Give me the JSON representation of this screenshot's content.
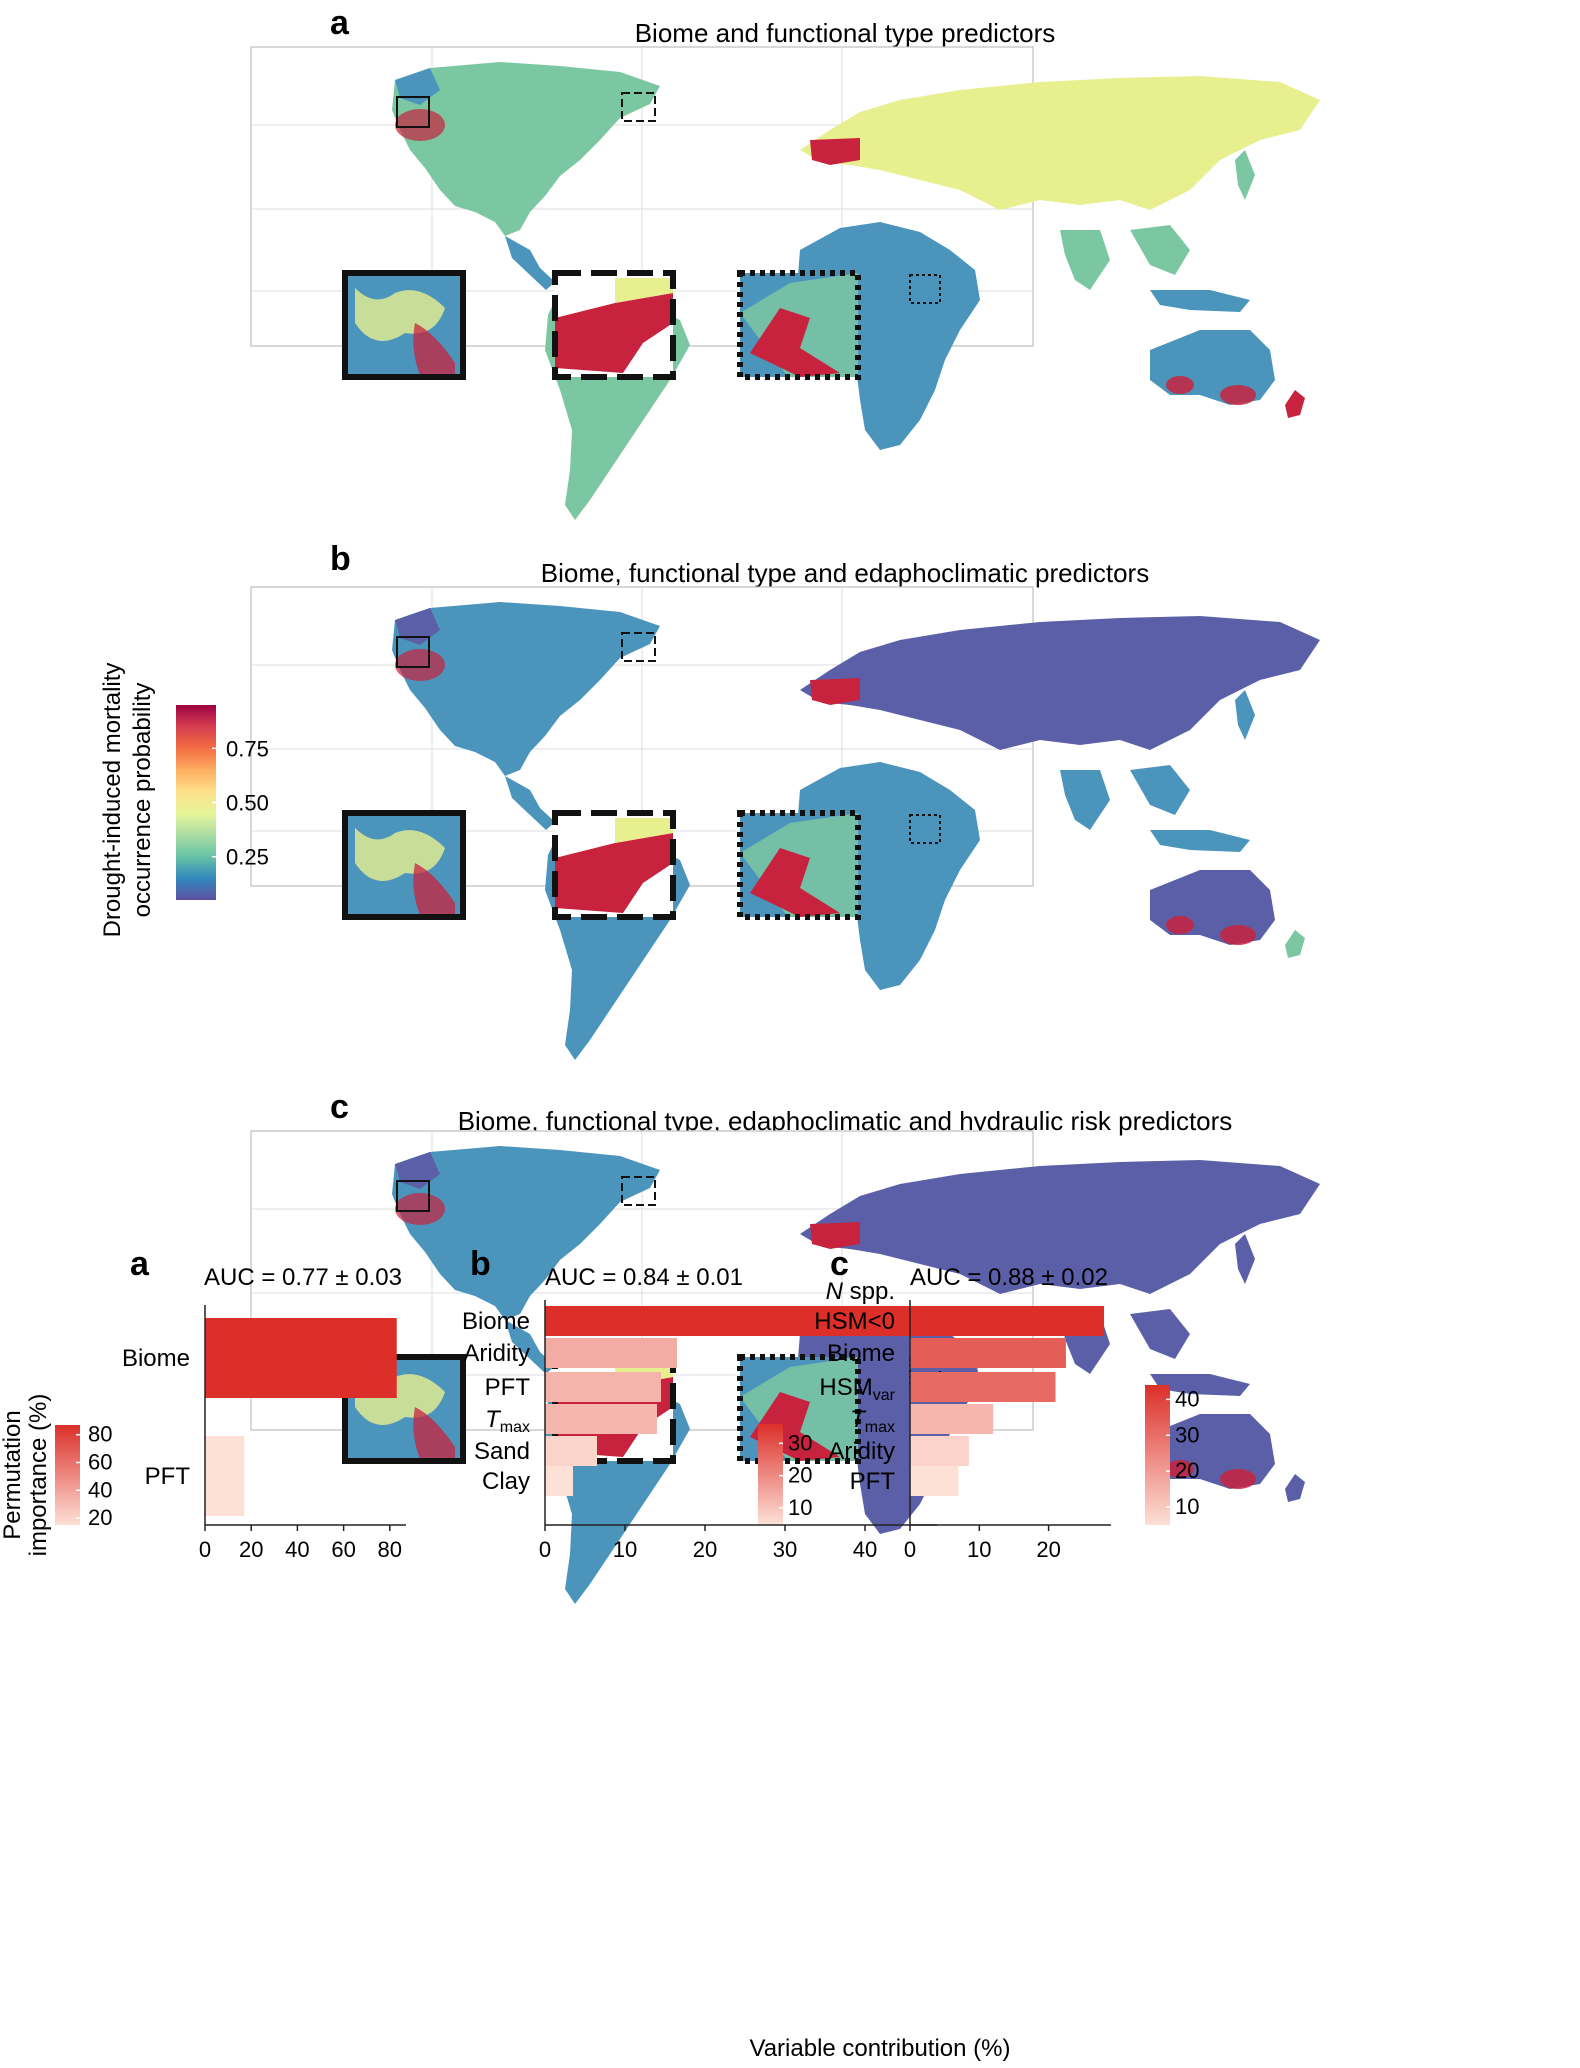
{
  "map_panels": [
    {
      "letter": "a",
      "title": "Biome and functional type predictors"
    },
    {
      "letter": "b",
      "title": "Biome, functional type and edaphoclimatic predictors"
    },
    {
      "letter": "c",
      "title": "Biome, functional type, edaphoclimatic  and hydraulic risk predictors"
    }
  ],
  "map_colorbar": {
    "label_line1": "Drought-induced mortality",
    "label_line2": "occurrence probability",
    "ticks": [
      "0.25",
      "0.50",
      "0.75"
    ],
    "tick_values": [
      0.25,
      0.5,
      0.75
    ],
    "range": [
      0.05,
      0.95
    ],
    "colors": [
      "#5e4fa2",
      "#3288bd",
      "#66c2a5",
      "#abdda4",
      "#e6f598",
      "#fee08b",
      "#fdae61",
      "#f46d43",
      "#d53e4f",
      "#9e0142"
    ]
  },
  "region_colors": {
    "low": "#5b5fa8",
    "mid": "#4b95bd",
    "green": "#7bc7a2",
    "yellow": "#e7ef8f",
    "high": "#c8233e"
  },
  "chart_data": [
    {
      "type": "bar",
      "panel": "a",
      "title": "AUC = 0.77 ± 0.03",
      "categories": [
        "Biome",
        "PFT"
      ],
      "values": [
        83,
        17
      ],
      "xlim": [
        0,
        87
      ],
      "xticks": [
        "0",
        "20",
        "40",
        "60",
        "80"
      ],
      "xtick_values": [
        0,
        20,
        40,
        60,
        80
      ],
      "colorbar": {
        "label_line1": "Permutation",
        "label_line2": "importance (%)",
        "ticks": [
          "20",
          "40",
          "60",
          "80"
        ],
        "tick_values": [
          20,
          40,
          60,
          80
        ],
        "range": [
          15,
          87
        ]
      }
    },
    {
      "type": "bar",
      "panel": "b",
      "title": "AUC = 0.84 ± 0.01",
      "categories": [
        "Biome",
        "Aridity",
        "PFT",
        "Tmax",
        "Sand",
        "Clay"
      ],
      "values": [
        47.5,
        16.5,
        14.5,
        14,
        6.5,
        3.5
      ],
      "xlim": [
        0,
        49
      ],
      "xticks": [
        "0",
        "10",
        "20",
        "30",
        "40"
      ],
      "xtick_values": [
        0,
        10,
        20,
        30,
        40
      ],
      "xlabel": "Variable contribution (%)",
      "colorbar": {
        "ticks": [
          "10",
          "20",
          "30"
        ],
        "tick_values": [
          10,
          20,
          30
        ],
        "range": [
          5,
          36
        ]
      }
    },
    {
      "type": "bar",
      "panel": "c",
      "title": "AUC = 0.88 ± 0.02",
      "categories": [
        "N spp. HSM<0",
        "Biome",
        "HSMvar",
        "Tmax",
        "Aridity",
        "PFT"
      ],
      "values": [
        28,
        22.5,
        21,
        12,
        8.5,
        7
      ],
      "xlim": [
        0,
        29
      ],
      "xticks": [
        "0",
        "10",
        "20"
      ],
      "xtick_values": [
        0,
        10,
        20
      ],
      "colorbar": {
        "ticks": [
          "10",
          "20",
          "30",
          "40"
        ],
        "tick_values": [
          10,
          20,
          30,
          40
        ],
        "range": [
          5,
          44
        ]
      }
    }
  ],
  "bar_label_parts": {
    "nspp_n": "N",
    "nspp_rest": " spp.",
    "hsm_neg": "HSM<0",
    "hsm": "HSM",
    "hsm_sub": "var",
    "t": "T",
    "t_sub": "max"
  },
  "bar_colors": {
    "light": "#fde0d6",
    "dark": "#dc2f2a"
  }
}
